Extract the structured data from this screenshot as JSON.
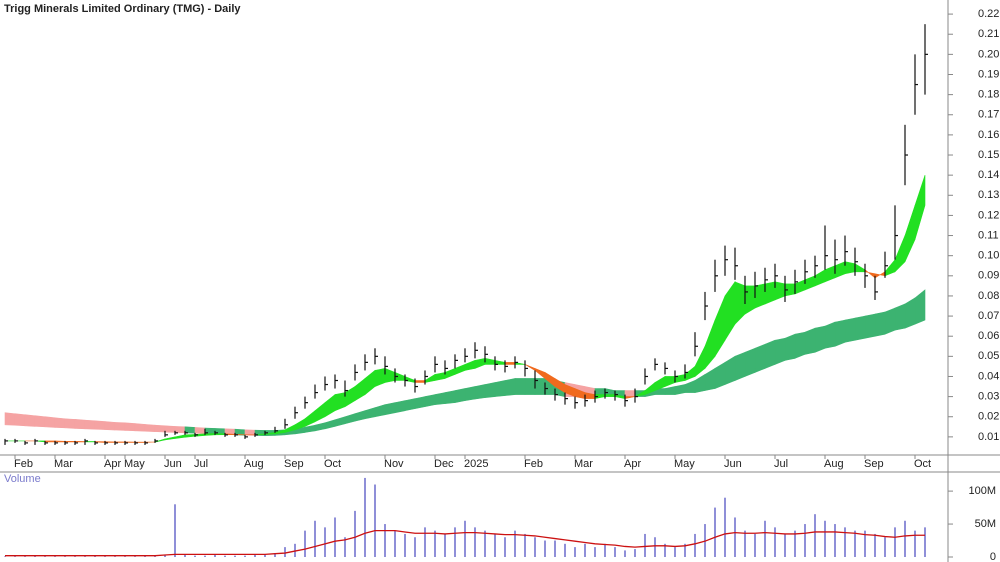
{
  "chart_data": [
    {
      "type": "candlestick",
      "title": "Trigg Minerals Limited Ordinary (TMG) - Daily",
      "categories": [
        null,
        "Feb",
        null,
        null,
        null,
        "Mar",
        null,
        null,
        null,
        null,
        "Apr",
        null,
        "May",
        null,
        null,
        null,
        "Jun",
        null,
        null,
        "Jul",
        null,
        null,
        null,
        null,
        "Aug",
        null,
        null,
        null,
        "Sep",
        null,
        null,
        null,
        "Oct",
        null,
        null,
        null,
        null,
        null,
        "Nov",
        null,
        null,
        null,
        null,
        "Dec",
        null,
        null,
        "2025",
        null,
        null,
        null,
        null,
        null,
        "Feb",
        null,
        null,
        null,
        null,
        "Mar",
        null,
        null,
        null,
        null,
        "Apr",
        null,
        null,
        null,
        null,
        "May",
        null,
        null,
        null,
        null,
        "Jun",
        null,
        null,
        null,
        null,
        "Jul",
        null,
        null,
        null,
        null,
        "Aug",
        null,
        null,
        null,
        "Sep",
        null,
        null,
        null,
        null,
        "Oct",
        null
      ],
      "high": [
        0.009,
        0.009,
        0.008,
        0.009,
        0.008,
        0.008,
        0.008,
        0.008,
        0.009,
        0.008,
        0.008,
        0.008,
        0.008,
        0.008,
        0.008,
        0.009,
        0.013,
        0.013,
        0.013,
        0.012,
        0.014,
        0.013,
        0.012,
        0.012,
        0.011,
        0.012,
        0.013,
        0.015,
        0.019,
        0.025,
        0.03,
        0.036,
        0.04,
        0.041,
        0.038,
        0.046,
        0.051,
        0.054,
        0.05,
        0.044,
        0.041,
        0.039,
        0.043,
        0.05,
        0.048,
        0.051,
        0.054,
        0.057,
        0.055,
        0.05,
        0.048,
        0.05,
        0.048,
        0.043,
        0.037,
        0.034,
        0.032,
        0.03,
        0.031,
        0.033,
        0.034,
        0.033,
        0.031,
        0.034,
        0.044,
        0.049,
        0.047,
        0.043,
        0.046,
        0.062,
        0.082,
        0.098,
        0.105,
        0.104,
        0.09,
        0.092,
        0.094,
        0.096,
        0.09,
        0.093,
        0.098,
        0.1,
        0.115,
        0.108,
        0.11,
        0.104,
        0.096,
        0.09,
        0.102,
        0.125,
        0.165,
        0.2,
        0.215
      ],
      "low": [
        0.006,
        0.007,
        0.006,
        0.006,
        0.006,
        0.006,
        0.006,
        0.006,
        0.006,
        0.006,
        0.006,
        0.006,
        0.006,
        0.006,
        0.006,
        0.007,
        0.01,
        0.011,
        0.011,
        0.01,
        0.011,
        0.011,
        0.01,
        0.01,
        0.009,
        0.01,
        0.011,
        0.012,
        0.014,
        0.019,
        0.024,
        0.029,
        0.033,
        0.034,
        0.03,
        0.038,
        0.043,
        0.046,
        0.041,
        0.037,
        0.035,
        0.032,
        0.036,
        0.042,
        0.041,
        0.044,
        0.047,
        0.049,
        0.047,
        0.043,
        0.042,
        0.044,
        0.04,
        0.034,
        0.031,
        0.028,
        0.026,
        0.024,
        0.025,
        0.027,
        0.029,
        0.028,
        0.025,
        0.027,
        0.036,
        0.043,
        0.041,
        0.037,
        0.039,
        0.05,
        0.068,
        0.082,
        0.09,
        0.088,
        0.076,
        0.079,
        0.082,
        0.084,
        0.077,
        0.081,
        0.086,
        0.089,
        0.093,
        0.091,
        0.095,
        0.09,
        0.084,
        0.078,
        0.089,
        0.098,
        0.135,
        0.17,
        0.18
      ],
      "close": [
        0.008,
        0.008,
        0.007,
        0.008,
        0.007,
        0.007,
        0.007,
        0.007,
        0.008,
        0.007,
        0.007,
        0.007,
        0.007,
        0.007,
        0.007,
        0.008,
        0.011,
        0.012,
        0.012,
        0.011,
        0.012,
        0.012,
        0.011,
        0.011,
        0.01,
        0.011,
        0.012,
        0.013,
        0.016,
        0.022,
        0.027,
        0.032,
        0.036,
        0.038,
        0.033,
        0.042,
        0.047,
        0.05,
        0.045,
        0.04,
        0.038,
        0.035,
        0.04,
        0.046,
        0.044,
        0.048,
        0.05,
        0.053,
        0.051,
        0.046,
        0.045,
        0.047,
        0.044,
        0.038,
        0.034,
        0.031,
        0.029,
        0.027,
        0.028,
        0.03,
        0.032,
        0.031,
        0.028,
        0.03,
        0.04,
        0.046,
        0.044,
        0.04,
        0.042,
        0.055,
        0.075,
        0.09,
        0.098,
        0.095,
        0.082,
        0.085,
        0.088,
        0.09,
        0.083,
        0.087,
        0.092,
        0.095,
        0.1,
        0.098,
        0.102,
        0.097,
        0.09,
        0.082,
        0.095,
        0.11,
        0.15,
        0.185,
        0.2
      ],
      "short_fast": [
        0.008,
        0.008,
        0.008,
        0.008,
        0.0075,
        0.0075,
        0.0075,
        0.0075,
        0.0075,
        0.0075,
        0.0072,
        0.0072,
        0.0072,
        0.0072,
        0.0072,
        0.0075,
        0.009,
        0.01,
        0.011,
        0.0112,
        0.0115,
        0.0117,
        0.0115,
        0.0113,
        0.011,
        0.011,
        0.0115,
        0.0122,
        0.0135,
        0.016,
        0.019,
        0.023,
        0.027,
        0.031,
        0.032,
        0.035,
        0.039,
        0.043,
        0.044,
        0.042,
        0.04,
        0.038,
        0.038,
        0.041,
        0.042,
        0.044,
        0.046,
        0.048,
        0.049,
        0.048,
        0.047,
        0.047,
        0.046,
        0.043,
        0.039,
        0.035,
        0.032,
        0.03,
        0.029,
        0.029,
        0.03,
        0.03,
        0.029,
        0.03,
        0.033,
        0.037,
        0.04,
        0.04,
        0.041,
        0.045,
        0.055,
        0.068,
        0.08,
        0.087,
        0.085,
        0.085,
        0.086,
        0.087,
        0.086,
        0.086,
        0.088,
        0.09,
        0.093,
        0.095,
        0.097,
        0.096,
        0.093,
        0.089,
        0.092,
        0.098,
        0.11,
        0.125,
        0.14
      ],
      "short_slow": [
        0.008,
        0.008,
        0.008,
        0.008,
        0.008,
        0.008,
        0.0078,
        0.0078,
        0.0077,
        0.0077,
        0.0076,
        0.0075,
        0.0075,
        0.0074,
        0.0074,
        0.0074,
        0.0085,
        0.0092,
        0.0098,
        0.0103,
        0.0107,
        0.011,
        0.0111,
        0.0111,
        0.011,
        0.011,
        0.0112,
        0.0115,
        0.0122,
        0.0135,
        0.0152,
        0.0175,
        0.02,
        0.023,
        0.025,
        0.028,
        0.031,
        0.035,
        0.037,
        0.038,
        0.038,
        0.037,
        0.037,
        0.038,
        0.039,
        0.041,
        0.043,
        0.044,
        0.046,
        0.046,
        0.046,
        0.046,
        0.046,
        0.044,
        0.042,
        0.039,
        0.036,
        0.034,
        0.032,
        0.031,
        0.031,
        0.031,
        0.03,
        0.03,
        0.031,
        0.033,
        0.035,
        0.037,
        0.038,
        0.04,
        0.044,
        0.05,
        0.058,
        0.066,
        0.071,
        0.074,
        0.076,
        0.078,
        0.08,
        0.081,
        0.083,
        0.085,
        0.087,
        0.089,
        0.091,
        0.092,
        0.092,
        0.091,
        0.09,
        0.092,
        0.097,
        0.108,
        0.125
      ],
      "long_upper": [
        0.022,
        0.0215,
        0.021,
        0.0205,
        0.02,
        0.0195,
        0.019,
        0.0187,
        0.0183,
        0.018,
        0.0176,
        0.0172,
        0.017,
        0.0166,
        0.0162,
        0.0158,
        0.0155,
        0.0152,
        0.015,
        0.0147,
        0.0144,
        0.0142,
        0.014,
        0.0138,
        0.0135,
        0.0133,
        0.0132,
        0.0132,
        0.0135,
        0.014,
        0.0148,
        0.0158,
        0.017,
        0.0185,
        0.02,
        0.0215,
        0.023,
        0.0245,
        0.026,
        0.027,
        0.028,
        0.029,
        0.03,
        0.031,
        0.032,
        0.033,
        0.034,
        0.035,
        0.036,
        0.037,
        0.038,
        0.039,
        0.039,
        0.039,
        0.039,
        0.038,
        0.037,
        0.036,
        0.035,
        0.034,
        0.034,
        0.033,
        0.033,
        0.033,
        0.033,
        0.034,
        0.034,
        0.035,
        0.036,
        0.038,
        0.041,
        0.044,
        0.047,
        0.05,
        0.052,
        0.054,
        0.056,
        0.058,
        0.059,
        0.061,
        0.062,
        0.064,
        0.065,
        0.067,
        0.068,
        0.069,
        0.07,
        0.071,
        0.072,
        0.074,
        0.076,
        0.079,
        0.083
      ],
      "long_lower": [
        0.016,
        0.0158,
        0.0155,
        0.0152,
        0.015,
        0.0147,
        0.0145,
        0.0142,
        0.014,
        0.0138,
        0.0136,
        0.0134,
        0.0132,
        0.013,
        0.0128,
        0.0126,
        0.0124,
        0.0122,
        0.012,
        0.0118,
        0.0116,
        0.0114,
        0.0112,
        0.011,
        0.0108,
        0.0107,
        0.0106,
        0.0107,
        0.011,
        0.0115,
        0.0122,
        0.013,
        0.014,
        0.0152,
        0.0165,
        0.0178,
        0.019,
        0.02,
        0.021,
        0.022,
        0.023,
        0.024,
        0.025,
        0.026,
        0.0265,
        0.027,
        0.028,
        0.0288,
        0.0295,
        0.03,
        0.0305,
        0.031,
        0.031,
        0.031,
        0.031,
        0.031,
        0.03,
        0.03,
        0.03,
        0.03,
        0.03,
        0.03,
        0.03,
        0.03,
        0.03,
        0.031,
        0.031,
        0.031,
        0.032,
        0.032,
        0.033,
        0.034,
        0.036,
        0.038,
        0.04,
        0.042,
        0.044,
        0.046,
        0.048,
        0.049,
        0.051,
        0.052,
        0.054,
        0.055,
        0.057,
        0.058,
        0.059,
        0.06,
        0.061,
        0.063,
        0.064,
        0.066,
        0.068
      ],
      "colors": {
        "candle": "#111111",
        "short_up": "#22e022",
        "short_down": "#f06a1e",
        "long_up": "#3cb371",
        "long_down": "#f5a3a3"
      },
      "ylim": [
        0,
        0.227
      ],
      "yticks": [
        0.01,
        0.02,
        0.03,
        0.04,
        0.05,
        0.06,
        0.07,
        0.08,
        0.09,
        {
          "value": 0.1,
          "label": "0.10"
        },
        0.11,
        0.12,
        0.13,
        0.14,
        0.15,
        0.16,
        0.17,
        0.18,
        0.19,
        {
          "value": 0.2,
          "label": "0.20"
        },
        0.21,
        0.22
      ]
    },
    {
      "type": "bar",
      "title": "Volume",
      "color": "#8f8fd8",
      "ma_color": "#cc1111",
      "values": [
        1,
        1,
        1,
        2,
        1,
        1,
        1,
        1,
        1,
        2,
        1,
        1,
        1,
        1,
        2,
        2,
        3,
        80,
        3,
        2,
        2,
        3,
        2,
        2,
        2,
        3,
        4,
        6,
        15,
        20,
        40,
        55,
        45,
        60,
        30,
        70,
        120,
        110,
        50,
        40,
        35,
        30,
        45,
        40,
        35,
        45,
        55,
        45,
        40,
        35,
        30,
        40,
        35,
        30,
        25,
        25,
        20,
        15,
        20,
        15,
        20,
        15,
        10,
        12,
        35,
        30,
        20,
        15,
        20,
        35,
        50,
        75,
        90,
        60,
        40,
        35,
        55,
        45,
        35,
        40,
        50,
        65,
        55,
        50,
        45,
        40,
        40,
        35,
        30,
        45,
        55,
        40,
        45
      ],
      "ma": [
        2,
        2,
        2,
        2,
        2,
        2,
        2,
        2,
        2,
        2,
        2,
        2,
        2,
        2,
        2,
        2,
        3,
        4,
        4,
        4,
        4,
        4,
        4,
        4,
        4,
        4,
        4,
        5,
        6,
        9,
        12,
        16,
        20,
        24,
        26,
        30,
        36,
        40,
        40,
        40,
        38,
        36,
        36,
        36,
        35,
        36,
        37,
        37,
        36,
        35,
        34,
        34,
        33,
        32,
        30,
        28,
        26,
        24,
        22,
        20,
        19,
        18,
        16,
        15,
        16,
        17,
        17,
        16,
        17,
        20,
        24,
        30,
        35,
        37,
        36,
        36,
        37,
        36,
        35,
        35,
        36,
        38,
        38,
        38,
        37,
        36,
        34,
        33,
        31,
        30,
        32,
        33,
        33
      ],
      "ylim": [
        0,
        129
      ],
      "yticks": [
        0,
        {
          "value": 50,
          "label": "50M"
        },
        {
          "value": 100,
          "label": "100M"
        }
      ]
    }
  ]
}
